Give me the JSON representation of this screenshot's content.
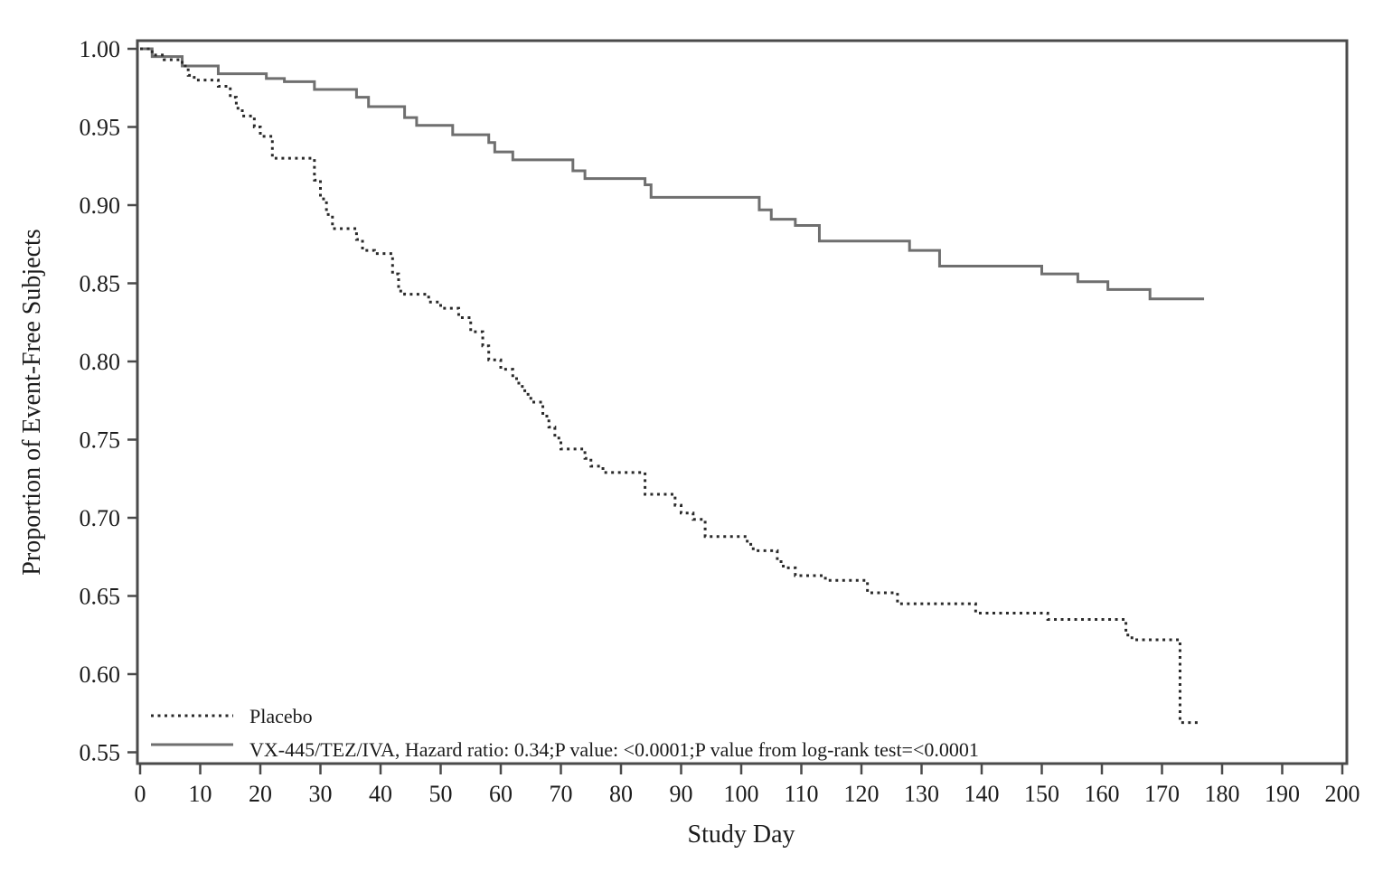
{
  "figure": {
    "background": "#ffffff",
    "text_color": "#1c1c1c",
    "spine_color": "#4a4a4a"
  },
  "chart_data": {
    "type": "line",
    "subtype": "kaplan-meier-step",
    "title": "",
    "xlabel": "Study Day",
    "ylabel": "Proportion of Event-Free Subjects",
    "xlim": [
      0,
      200
    ],
    "ylim": [
      0.54,
      1.005
    ],
    "grid": false,
    "legend_position": "inside-bottom-left",
    "x_ticks": [
      0,
      10,
      20,
      30,
      40,
      50,
      60,
      70,
      80,
      90,
      100,
      110,
      120,
      130,
      140,
      150,
      160,
      170,
      180,
      190,
      200
    ],
    "y_ticks": [
      0.55,
      0.6,
      0.65,
      0.7,
      0.75,
      0.8,
      0.85,
      0.9,
      0.95,
      1.0
    ],
    "y_tick_labels": [
      "0.55",
      "0.60",
      "0.65",
      "0.70",
      "0.75",
      "0.80",
      "0.85",
      "0.90",
      "0.95",
      "1.00"
    ],
    "series": [
      {
        "name": "Placebo",
        "line_style": "dotted",
        "color": "#2a2a2a",
        "points": [
          [
            0,
            1.0
          ],
          [
            2,
            0.996
          ],
          [
            4,
            0.993
          ],
          [
            7,
            0.989
          ],
          [
            8,
            0.983
          ],
          [
            9,
            0.98
          ],
          [
            13,
            0.976
          ],
          [
            15,
            0.969
          ],
          [
            16,
            0.962
          ],
          [
            17,
            0.957
          ],
          [
            19,
            0.95
          ],
          [
            20,
            0.944
          ],
          [
            22,
            0.93
          ],
          [
            29,
            0.916
          ],
          [
            30,
            0.904
          ],
          [
            31,
            0.894
          ],
          [
            32,
            0.885
          ],
          [
            36,
            0.878
          ],
          [
            37,
            0.871
          ],
          [
            39,
            0.869
          ],
          [
            42,
            0.856
          ],
          [
            43,
            0.845
          ],
          [
            44,
            0.843
          ],
          [
            48,
            0.838
          ],
          [
            50,
            0.834
          ],
          [
            53,
            0.828
          ],
          [
            55,
            0.819
          ],
          [
            57,
            0.81
          ],
          [
            58,
            0.801
          ],
          [
            60,
            0.795
          ],
          [
            62,
            0.789
          ],
          [
            63,
            0.784
          ],
          [
            64,
            0.779
          ],
          [
            65,
            0.774
          ],
          [
            67,
            0.765
          ],
          [
            68,
            0.758
          ],
          [
            69,
            0.751
          ],
          [
            70,
            0.744
          ],
          [
            74,
            0.738
          ],
          [
            75,
            0.733
          ],
          [
            77,
            0.729
          ],
          [
            84,
            0.715
          ],
          [
            89,
            0.708
          ],
          [
            90,
            0.703
          ],
          [
            92,
            0.699
          ],
          [
            94,
            0.688
          ],
          [
            101,
            0.683
          ],
          [
            102,
            0.679
          ],
          [
            106,
            0.672
          ],
          [
            107,
            0.668
          ],
          [
            109,
            0.663
          ],
          [
            114,
            0.66
          ],
          [
            121,
            0.652
          ],
          [
            126,
            0.645
          ],
          [
            139,
            0.639
          ],
          [
            151,
            0.635
          ],
          [
            164,
            0.625
          ],
          [
            165,
            0.622
          ],
          [
            173,
            0.569
          ],
          [
            176,
            0.569
          ]
        ]
      },
      {
        "name": "VX-445/TEZ/IVA, Hazard ratio: 0.34;P value: <0.0001;P value from log-rank test=<0.0001",
        "line_style": "solid",
        "color": "#6f6f6f",
        "points": [
          [
            0,
            1.0
          ],
          [
            2,
            0.995
          ],
          [
            7,
            0.989
          ],
          [
            13,
            0.984
          ],
          [
            21,
            0.981
          ],
          [
            24,
            0.979
          ],
          [
            29,
            0.974
          ],
          [
            36,
            0.969
          ],
          [
            38,
            0.963
          ],
          [
            44,
            0.956
          ],
          [
            46,
            0.951
          ],
          [
            52,
            0.945
          ],
          [
            58,
            0.94
          ],
          [
            59,
            0.934
          ],
          [
            62,
            0.929
          ],
          [
            72,
            0.922
          ],
          [
            74,
            0.917
          ],
          [
            84,
            0.913
          ],
          [
            85,
            0.905
          ],
          [
            103,
            0.897
          ],
          [
            105,
            0.891
          ],
          [
            109,
            0.887
          ],
          [
            113,
            0.877
          ],
          [
            128,
            0.871
          ],
          [
            133,
            0.861
          ],
          [
            150,
            0.856
          ],
          [
            156,
            0.851
          ],
          [
            161,
            0.846
          ],
          [
            168,
            0.84
          ],
          [
            177,
            0.84
          ]
        ]
      }
    ],
    "annotations": {
      "hazard_ratio": "0.34",
      "p_value": "<0.0001",
      "log_rank_p_value": "<0.0001"
    }
  },
  "legend": {
    "items": [
      {
        "label": "Placebo"
      },
      {
        "label": "VX-445/TEZ/IVA, Hazard ratio: 0.34;P value: <0.0001;P value from log-rank test=<0.0001"
      }
    ]
  }
}
